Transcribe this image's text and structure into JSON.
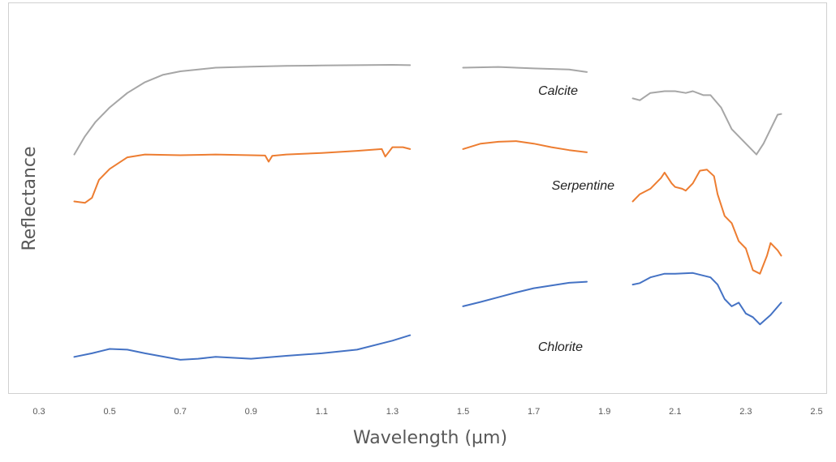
{
  "chart_data": {
    "type": "line",
    "title": "",
    "xlabel": "Wavelength (µm)",
    "ylabel": "Reflectance",
    "xlim": [
      0.3,
      2.5
    ],
    "ylim": [
      0,
      1
    ],
    "x_ticks": [
      "0.3",
      "0.5",
      "0.7",
      "0.9",
      "1.1",
      "1.3",
      "1.5",
      "1.7",
      "1.9",
      "2.1",
      "2.3",
      "2.5"
    ],
    "y_ticks": [],
    "grid": false,
    "legend": "none",
    "series": [
      {
        "name": "Calcite",
        "color": "#a6a6a6",
        "segments": [
          [
            [
              0.4,
              0.64
            ],
            [
              0.43,
              0.69
            ],
            [
              0.46,
              0.73
            ],
            [
              0.5,
              0.77
            ],
            [
              0.55,
              0.81
            ],
            [
              0.6,
              0.84
            ],
            [
              0.65,
              0.86
            ],
            [
              0.7,
              0.87
            ],
            [
              0.8,
              0.88
            ],
            [
              0.9,
              0.883
            ],
            [
              1.0,
              0.885
            ],
            [
              1.1,
              0.886
            ],
            [
              1.2,
              0.887
            ],
            [
              1.3,
              0.888
            ],
            [
              1.35,
              0.887
            ]
          ],
          [
            [
              1.5,
              0.88
            ],
            [
              1.6,
              0.882
            ],
            [
              1.7,
              0.878
            ],
            [
              1.8,
              0.875
            ],
            [
              1.85,
              0.868
            ]
          ],
          [
            [
              1.98,
              0.795
            ],
            [
              2.0,
              0.79
            ],
            [
              2.03,
              0.81
            ],
            [
              2.07,
              0.815
            ],
            [
              2.1,
              0.815
            ],
            [
              2.13,
              0.81
            ],
            [
              2.15,
              0.815
            ],
            [
              2.18,
              0.804
            ],
            [
              2.2,
              0.804
            ],
            [
              2.23,
              0.77
            ],
            [
              2.26,
              0.71
            ],
            [
              2.3,
              0.67
            ],
            [
              2.33,
              0.64
            ],
            [
              2.35,
              0.67
            ],
            [
              2.37,
              0.71
            ],
            [
              2.39,
              0.75
            ],
            [
              2.4,
              0.752
            ]
          ]
        ]
      },
      {
        "name": "Serpentine",
        "color": "#ed7d31",
        "segments": [
          [
            [
              0.4,
              0.51
            ],
            [
              0.43,
              0.506
            ],
            [
              0.45,
              0.52
            ],
            [
              0.47,
              0.57
            ],
            [
              0.5,
              0.6
            ],
            [
              0.55,
              0.632
            ],
            [
              0.6,
              0.64
            ],
            [
              0.7,
              0.638
            ],
            [
              0.8,
              0.64
            ],
            [
              0.9,
              0.638
            ],
            [
              0.94,
              0.637
            ],
            [
              0.95,
              0.62
            ],
            [
              0.96,
              0.636
            ],
            [
              1.0,
              0.64
            ],
            [
              1.1,
              0.644
            ],
            [
              1.2,
              0.65
            ],
            [
              1.27,
              0.655
            ],
            [
              1.28,
              0.634
            ],
            [
              1.3,
              0.66
            ],
            [
              1.33,
              0.66
            ],
            [
              1.35,
              0.655
            ]
          ],
          [
            [
              1.5,
              0.655
            ],
            [
              1.55,
              0.67
            ],
            [
              1.6,
              0.675
            ],
            [
              1.65,
              0.677
            ],
            [
              1.7,
              0.67
            ],
            [
              1.75,
              0.66
            ],
            [
              1.8,
              0.652
            ],
            [
              1.85,
              0.646
            ]
          ],
          [
            [
              1.98,
              0.51
            ],
            [
              2.0,
              0.53
            ],
            [
              2.03,
              0.545
            ],
            [
              2.06,
              0.575
            ],
            [
              2.07,
              0.59
            ],
            [
              2.09,
              0.56
            ],
            [
              2.1,
              0.55
            ],
            [
              2.12,
              0.545
            ],
            [
              2.13,
              0.54
            ],
            [
              2.15,
              0.56
            ],
            [
              2.17,
              0.595
            ],
            [
              2.19,
              0.598
            ],
            [
              2.21,
              0.58
            ],
            [
              2.22,
              0.53
            ],
            [
              2.24,
              0.47
            ],
            [
              2.26,
              0.45
            ],
            [
              2.28,
              0.4
            ],
            [
              2.3,
              0.38
            ],
            [
              2.32,
              0.32
            ],
            [
              2.34,
              0.31
            ],
            [
              2.36,
              0.36
            ],
            [
              2.37,
              0.395
            ],
            [
              2.39,
              0.375
            ],
            [
              2.4,
              0.36
            ]
          ]
        ]
      },
      {
        "name": "Chlorite",
        "color": "#4472c4",
        "segments": [
          [
            [
              0.4,
              0.08
            ],
            [
              0.45,
              0.09
            ],
            [
              0.5,
              0.102
            ],
            [
              0.55,
              0.1
            ],
            [
              0.6,
              0.09
            ],
            [
              0.7,
              0.072
            ],
            [
              0.75,
              0.075
            ],
            [
              0.8,
              0.08
            ],
            [
              0.9,
              0.075
            ],
            [
              1.0,
              0.083
            ],
            [
              1.1,
              0.09
            ],
            [
              1.2,
              0.1
            ],
            [
              1.3,
              0.125
            ],
            [
              1.35,
              0.14
            ]
          ],
          [
            [
              1.5,
              0.22
            ],
            [
              1.55,
              0.232
            ],
            [
              1.6,
              0.245
            ],
            [
              1.65,
              0.258
            ],
            [
              1.7,
              0.27
            ],
            [
              1.8,
              0.285
            ],
            [
              1.85,
              0.288
            ]
          ],
          [
            [
              1.98,
              0.28
            ],
            [
              2.0,
              0.284
            ],
            [
              2.03,
              0.3
            ],
            [
              2.07,
              0.31
            ],
            [
              2.1,
              0.31
            ],
            [
              2.15,
              0.312
            ],
            [
              2.2,
              0.3
            ],
            [
              2.22,
              0.28
            ],
            [
              2.24,
              0.24
            ],
            [
              2.26,
              0.22
            ],
            [
              2.28,
              0.23
            ],
            [
              2.3,
              0.2
            ],
            [
              2.32,
              0.19
            ],
            [
              2.34,
              0.17
            ],
            [
              2.37,
              0.196
            ],
            [
              2.4,
              0.23
            ]
          ]
        ]
      }
    ]
  }
}
